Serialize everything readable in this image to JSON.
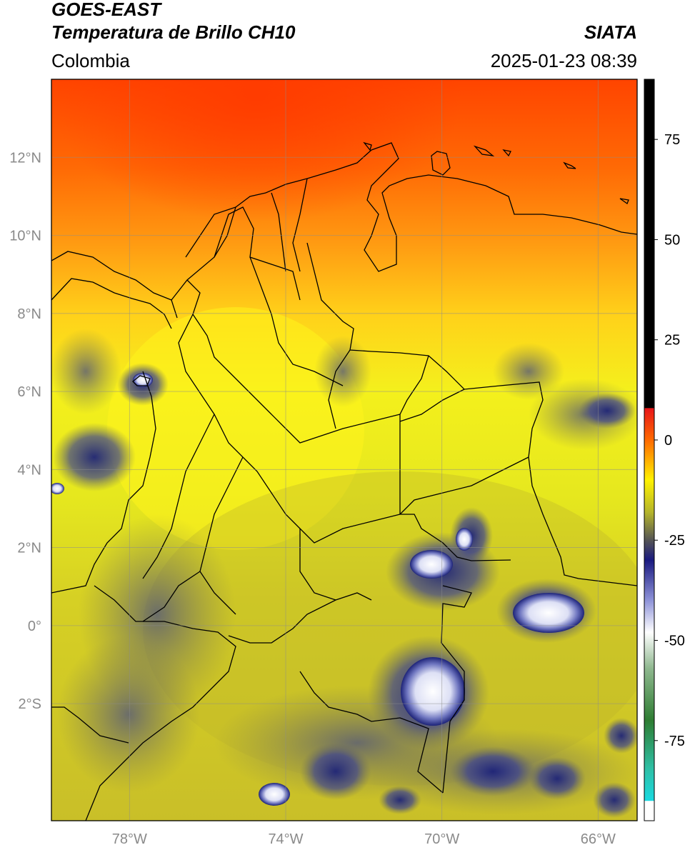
{
  "header": {
    "satellite": "GOES-EAST",
    "product": "Temperatura de Brillo CH10",
    "region": "Colombia",
    "agency": "SIATA",
    "datetime": "2025-01-23 08:39"
  },
  "map": {
    "extent": {
      "lon_min": -80,
      "lon_max": -65,
      "lat_min": -5,
      "lat_max": 14
    },
    "lat_ticks": [
      {
        "value": 12,
        "label": "12°N"
      },
      {
        "value": 10,
        "label": "10°N"
      },
      {
        "value": 8,
        "label": "8°N"
      },
      {
        "value": 6,
        "label": "6°N"
      },
      {
        "value": 4,
        "label": "4°N"
      },
      {
        "value": 2,
        "label": "2°N"
      },
      {
        "value": 0,
        "label": "0°"
      },
      {
        "value": -2,
        "label": "2°S"
      }
    ],
    "lon_ticks": [
      {
        "value": -78,
        "label": "78°W"
      },
      {
        "value": -74,
        "label": "74°W"
      },
      {
        "value": -70,
        "label": "70°W"
      },
      {
        "value": -66,
        "label": "66°W"
      }
    ],
    "grid": true
  },
  "colorbar": {
    "range": [
      -95,
      90
    ],
    "ticks": [
      {
        "value": 75,
        "label": "75"
      },
      {
        "value": 50,
        "label": "50"
      },
      {
        "value": 25,
        "label": "25"
      },
      {
        "value": 0,
        "label": "0"
      },
      {
        "value": -25,
        "label": "-25"
      },
      {
        "value": -50,
        "label": "-50"
      },
      {
        "value": -75,
        "label": "-75"
      }
    ],
    "stops": [
      {
        "value": 90,
        "color": "#000000"
      },
      {
        "value": 8,
        "color": "#000000"
      },
      {
        "value": 7.9,
        "color": "#e8161a"
      },
      {
        "value": 0,
        "color": "#ff6a00"
      },
      {
        "value": -10,
        "color": "#fff200"
      },
      {
        "value": -18,
        "color": "#b5b52a"
      },
      {
        "value": -25,
        "color": "#555555"
      },
      {
        "value": -30,
        "color": "#1a1a80"
      },
      {
        "value": -40,
        "color": "#8e93d8"
      },
      {
        "value": -48,
        "color": "#ffffff"
      },
      {
        "value": -57,
        "color": "#8fb88f"
      },
      {
        "value": -70,
        "color": "#2e7d32"
      },
      {
        "value": -82,
        "color": "#2ebfa5"
      },
      {
        "value": -90,
        "color": "#1ad9e0"
      },
      {
        "value": -90.1,
        "color": "#ffffff"
      },
      {
        "value": -95,
        "color": "#ffffff"
      }
    ]
  },
  "colors": {
    "land_warm": "#e9ec1e",
    "land_cool": "#cfc628",
    "sea_hot": "#ff4a00",
    "sea_orange": "#ff8a10",
    "cloud_blue": "#1f2a7a",
    "cloud_white": "#e6e8f8",
    "border": "#000000"
  }
}
